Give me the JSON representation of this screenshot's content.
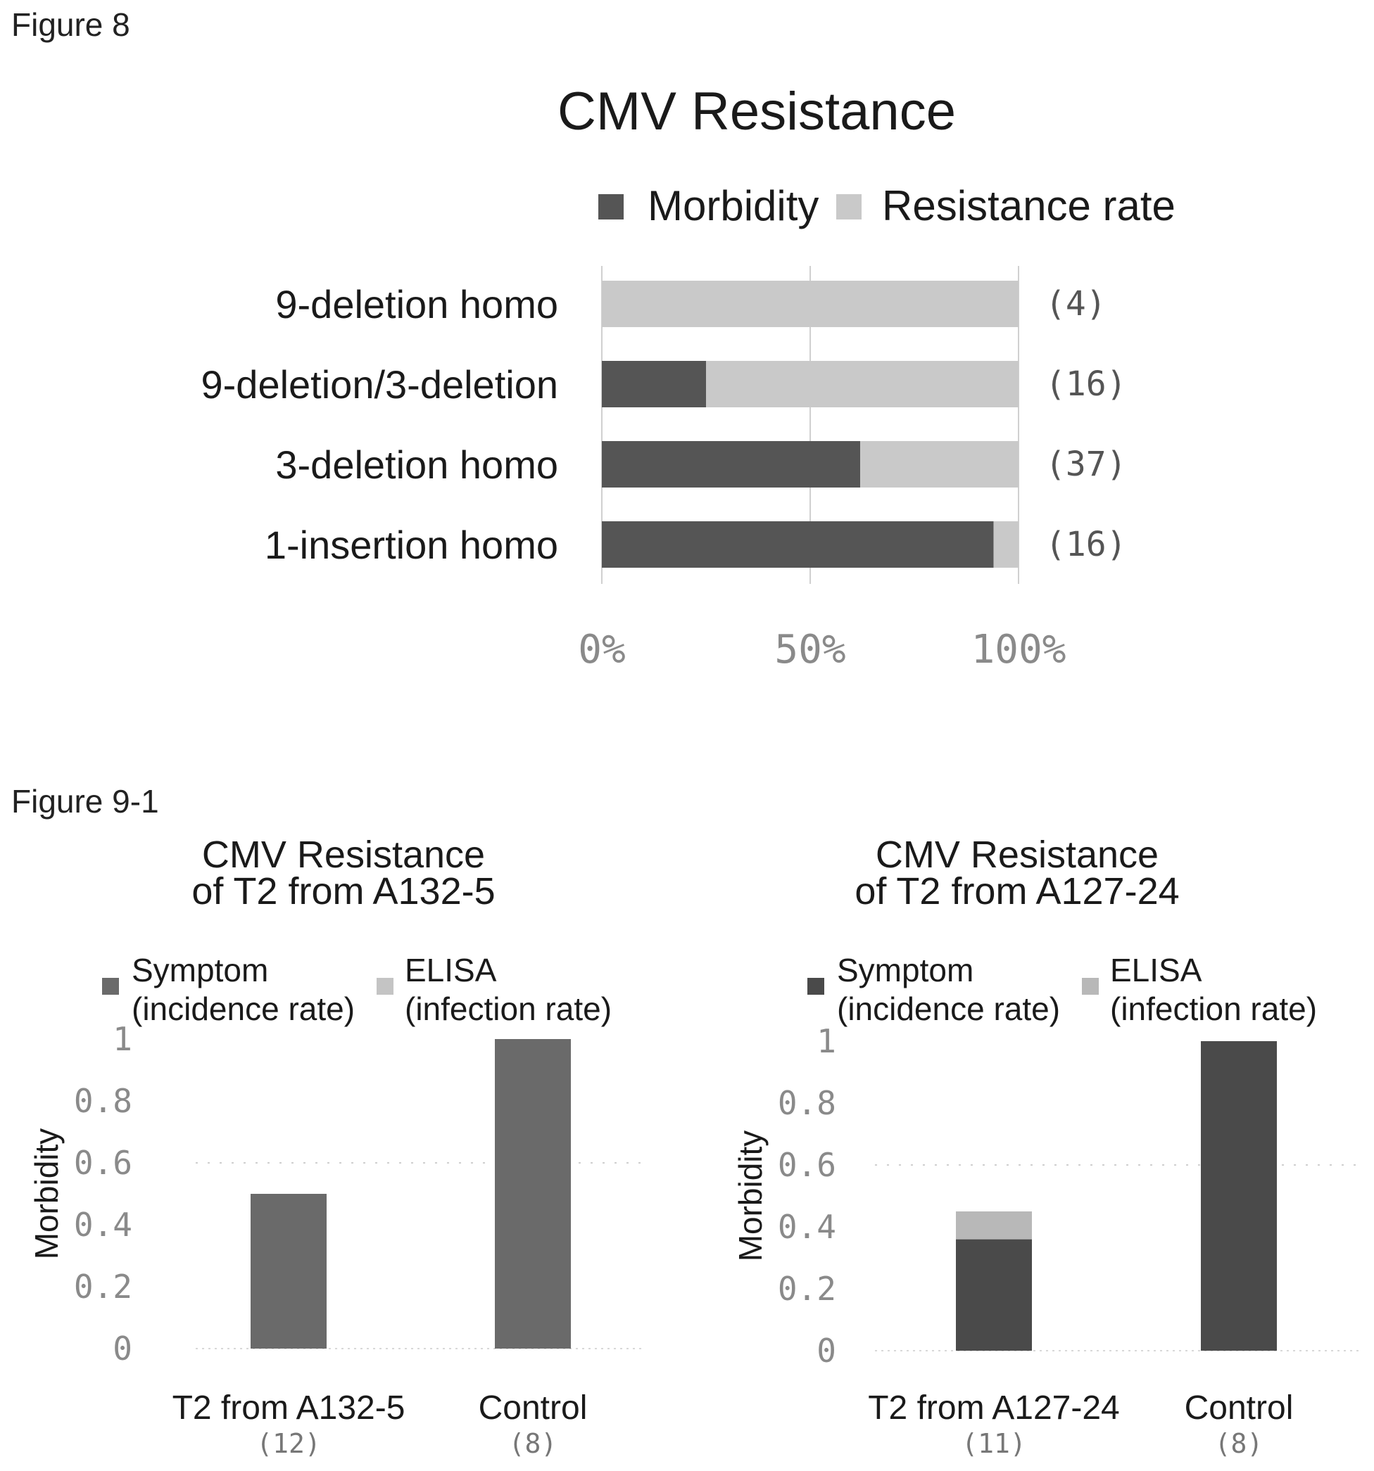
{
  "figure8": {
    "label": "Figure 8",
    "chart_data": {
      "type": "bar",
      "orientation": "horizontal",
      "stacked": true,
      "title": "CMV Resistance",
      "categories": [
        "9-deletion homo",
        "9-deletion/3-deletion",
        "3-deletion homo",
        "1-insertion homo"
      ],
      "counts": [
        "(4)",
        "(16)",
        "(37)",
        "(16)"
      ],
      "series": [
        {
          "name": "Morbidity",
          "values": [
            0,
            25,
            62,
            94
          ],
          "color": "#555555"
        },
        {
          "name": "Resistance rate",
          "values": [
            100,
            75,
            38,
            6
          ],
          "color": "#c9c9c9"
        }
      ],
      "xlim": [
        0,
        100
      ],
      "xticks": [
        "0%",
        "50%",
        "100%"
      ],
      "xtick_values": [
        0,
        50,
        100
      ],
      "grid": true,
      "legend": "top"
    }
  },
  "figure9": {
    "label": "Figure 9-1",
    "charts": [
      {
        "chart_data": {
          "type": "bar",
          "stacked": true,
          "title_lines": [
            "CMV Resistance",
            "of T2 from A132-5"
          ],
          "ylabel": "Morbidity",
          "ylim": [
            0,
            1
          ],
          "yticks": [
            "0",
            "0.2",
            "0.4",
            "0.6",
            "0.8",
            "1"
          ],
          "ytick_values": [
            0,
            0.2,
            0.4,
            0.6,
            0.8,
            1
          ],
          "categories": [
            "T2 from A132-5",
            "Control"
          ],
          "counts": [
            "(12)",
            "(8)"
          ],
          "series": [
            {
              "name_lines": [
                "Symptom",
                "(incidence rate)"
              ],
              "values": [
                0.5,
                1.0
              ],
              "color": "#6a6a6a"
            },
            {
              "name_lines": [
                "ELISA",
                "(infection rate)"
              ],
              "values": [
                0,
                0
              ],
              "color": "#c4c4c4"
            }
          ],
          "legend": "top"
        }
      },
      {
        "chart_data": {
          "type": "bar",
          "stacked": true,
          "title_lines": [
            "CMV Resistance",
            "of T2 from A127-24"
          ],
          "ylabel": "Morbidity",
          "ylim": [
            0,
            1
          ],
          "yticks": [
            "0",
            "0.2",
            "0.4",
            "0.6",
            "0.8",
            "1"
          ],
          "ytick_values": [
            0,
            0.2,
            0.4,
            0.6,
            0.8,
            1
          ],
          "categories": [
            "T2 from A127-24",
            "Control"
          ],
          "counts": [
            "(11)",
            "(8)"
          ],
          "series": [
            {
              "name_lines": [
                "Symptom",
                "(incidence rate)"
              ],
              "values": [
                0.36,
                1.0
              ],
              "color": "#4a4a4a"
            },
            {
              "name_lines": [
                "ELISA",
                "(infection rate)"
              ],
              "values": [
                0.09,
                0
              ],
              "color": "#b8b8b8"
            }
          ],
          "legend": "top"
        }
      }
    ]
  }
}
